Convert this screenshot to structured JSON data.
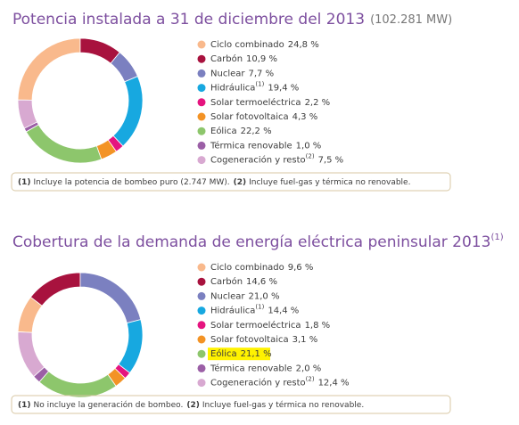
{
  "chart_data": [
    {
      "type": "donut",
      "title": "Potencia instalada a 31 de diciembre del 2013",
      "subtitle": "(102.281 MW)",
      "categories": [
        "Ciclo combinado",
        "Carbón",
        "Nuclear",
        "Hidráulica",
        "Solar termoeléctrica",
        "Solar fotovoltaica",
        "Eólica",
        "Térmica renovable",
        "Cogeneración y resto"
      ],
      "category_notes": [
        null,
        null,
        null,
        "(1)",
        null,
        null,
        null,
        null,
        "(2)"
      ],
      "values": [
        24.8,
        10.9,
        7.7,
        19.4,
        2.2,
        4.3,
        22.2,
        1.0,
        7.5
      ],
      "value_labels": [
        "24,8 %",
        "10,9 %",
        "7,7 %",
        "19,4 %",
        "2,2 %",
        "4,3 %",
        "22,2 %",
        "1,0 %",
        "7,5 %"
      ],
      "colors": [
        "#f9b98c",
        "#a8123e",
        "#7b80c0",
        "#17a8e0",
        "#e5147f",
        "#f39325",
        "#8dc66c",
        "#9b5fa6",
        "#d8a9d1"
      ],
      "start_angle": -89.3,
      "footnotes": [
        {
          "mark": "(1)",
          "text": "Incluye la potencia de bombeo puro (2.747 MW)."
        },
        {
          "mark": "(2)",
          "text": "Incluye fuel-gas y térmica no renovable."
        }
      ]
    },
    {
      "type": "donut",
      "title": "Cobertura de la demanda de energía eléctrica peninsular 2013",
      "title_note": "(1)",
      "categories": [
        "Ciclo combinado",
        "Carbón",
        "Nuclear",
        "Hidráulica",
        "Solar termoeléctrica",
        "Solar fotovoltaica",
        "Eólica",
        "Térmica renovable",
        "Cogeneración y resto"
      ],
      "category_notes": [
        null,
        null,
        null,
        "(1)",
        null,
        null,
        null,
        null,
        "(2)"
      ],
      "values": [
        9.6,
        14.6,
        21.0,
        14.4,
        1.8,
        3.1,
        21.1,
        2.0,
        12.4
      ],
      "value_labels": [
        "9,6 %",
        "14,6 %",
        "21,0 %",
        "14,4 %",
        "1,8 %",
        "3,1 %",
        "21,1 %",
        "2,0 %",
        "12,4 %"
      ],
      "colors": [
        "#f9b98c",
        "#a8123e",
        "#7b80c0",
        "#17a8e0",
        "#e5147f",
        "#f39325",
        "#8dc66c",
        "#9b5fa6",
        "#d8a9d1"
      ],
      "start_angle": -87.1,
      "highlight": 6,
      "footnotes": [
        {
          "mark": "(1)",
          "text": "No incluye la generación de bombeo."
        },
        {
          "mark": "(2)",
          "text": "Incluye fuel-gas y térmica no renovable."
        }
      ]
    }
  ]
}
